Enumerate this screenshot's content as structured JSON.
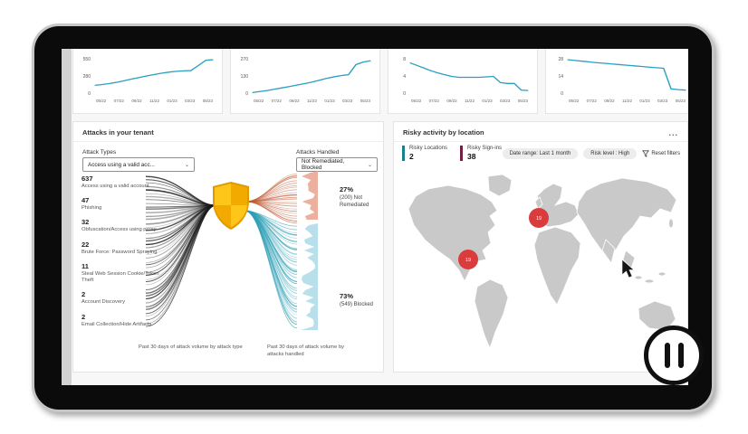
{
  "colors": {
    "line": "#2b9fc0",
    "marker_red": "#da3b3c",
    "strand_black": "#1c1c1c",
    "strand_orange": "#c05a33",
    "strand_teal": "#2d9fb5",
    "strip_salmon": "#e9a38d",
    "strip_blue": "#aadbe8",
    "stat_locations": "#1a7f8e",
    "stat_signins": "#72203f",
    "map_land": "#c9c9c9"
  },
  "chart_data": [
    {
      "type": "line",
      "title": "",
      "ylabel": "",
      "xlabel": "",
      "yticks": [
        "550",
        "280",
        "0"
      ],
      "ymax": 550,
      "x": [
        "05/22",
        "07/22",
        "09/22",
        "11/22",
        "01/23",
        "03/23",
        "05/23"
      ],
      "values": [
        150,
        162,
        178,
        198,
        222,
        248,
        272,
        296,
        318,
        338,
        355,
        368,
        375,
        380,
        458,
        540,
        550
      ]
    },
    {
      "type": "line",
      "title": "",
      "ylabel": "",
      "xlabel": "",
      "yticks": [
        "270",
        "130",
        "0"
      ],
      "ymax": 270,
      "x": [
        "05/22",
        "07/22",
        "09/22",
        "11/22",
        "01/23",
        "03/23",
        "05/23"
      ],
      "values": [
        18,
        26,
        34,
        44,
        54,
        64,
        75,
        86,
        98,
        112,
        126,
        138,
        148,
        155,
        232,
        252,
        262
      ]
    },
    {
      "type": "line",
      "title": "",
      "ylabel": "",
      "xlabel": "",
      "yticks": [
        "8",
        "4",
        "0"
      ],
      "ymax": 8,
      "x": [
        "05/22",
        "07/22",
        "09/22",
        "11/22",
        "01/23",
        "03/23",
        "05/23"
      ],
      "values": [
        7.3,
        6.7,
        6.1,
        5.5,
        5.0,
        4.6,
        4.2,
        4.0,
        4.0,
        4.0,
        4.0,
        4.1,
        4.2,
        2.8,
        2.6,
        2.6,
        1.1,
        1.0
      ]
    },
    {
      "type": "line",
      "title": "",
      "ylabel": "",
      "xlabel": "",
      "yticks": [
        "28",
        "14",
        "0"
      ],
      "ymax": 28,
      "x": [
        "05/22",
        "07/22",
        "09/22",
        "11/22",
        "01/23",
        "03/23",
        "05/23"
      ],
      "values": [
        28,
        27.4,
        26.8,
        26.2,
        25.6,
        25.1,
        24.6,
        24.1,
        23.6,
        23.1,
        22.6,
        22.1,
        21.6,
        21.2,
        4.8,
        4.2,
        3.8
      ]
    }
  ],
  "attacks_panel": {
    "title": "Attacks in your tenant",
    "attack_types_label": "Attack Types",
    "attack_types_value": "Access using a valid acc...",
    "attacks_handled_label": "Attacks Handled",
    "attacks_handled_value": "Not Remediated, Blocked",
    "attack_list": [
      {
        "count": "637",
        "label": "Access using a valid account"
      },
      {
        "count": "47",
        "label": "Phishing"
      },
      {
        "count": "32",
        "label": "Obfuscation/Access using proxy"
      },
      {
        "count": "22",
        "label": "Brute Force: Password Spraying"
      },
      {
        "count": "11",
        "label": "Steal Web Session Cookie/Token Theft"
      },
      {
        "count": "2",
        "label": "Account Discovery"
      },
      {
        "count": "2",
        "label": "Email Collection/Hide Artifacts"
      }
    ],
    "not_remediated": {
      "percent": "27%",
      "detail": "(200) Not Remediated"
    },
    "blocked": {
      "percent": "73%",
      "detail": "(549) Blocked"
    },
    "caption_left": "Past 30 days of attack volume by attack type",
    "caption_right": "Past 30 days of attack volume by attacks handled"
  },
  "risky_panel": {
    "title": "Risky activity by location",
    "menu": "...",
    "stats": [
      {
        "label": "Risky Locations",
        "value": "2"
      },
      {
        "label": "Risky Sign-ins",
        "value": "38"
      }
    ],
    "filters": {
      "date_range": "Date range: Last 1 month",
      "risk_level": "Risk level : High",
      "reset": "Reset filters"
    },
    "markers": [
      {
        "value": "19",
        "x": 74,
        "y": 98
      },
      {
        "value": "19",
        "x": 152,
        "y": 52
      }
    ]
  }
}
